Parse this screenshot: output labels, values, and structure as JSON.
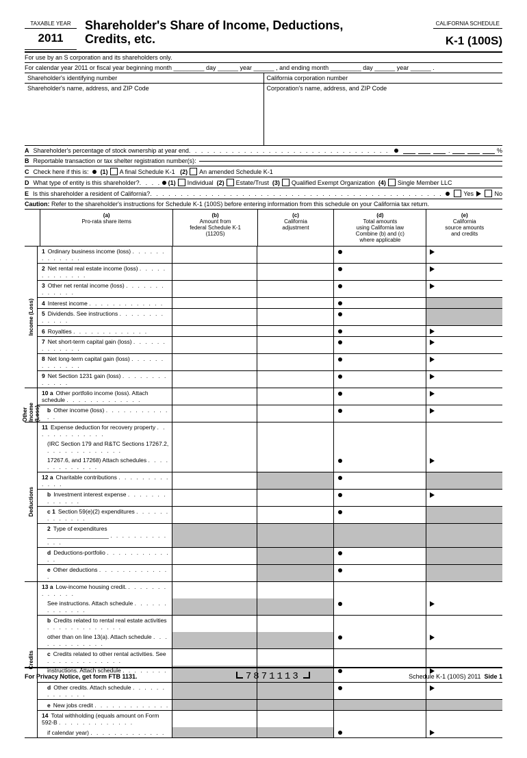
{
  "header": {
    "taxable_year_label": "TAXABLE YEAR",
    "year": "2011",
    "title_l1": "Shareholder's Share of Income, Deductions,",
    "title_l2": "Credits, etc.",
    "ca_schedule": "CALIFORNIA SCHEDULE",
    "form_code": "K-1 (100S)"
  },
  "info": {
    "use_line": "For use by an S corporation and its shareholders only.",
    "cal_line": "For calendar year 2011 or fiscal year beginning month _________ day ______ year ______ , and ending month _________ day ______ year ______ .",
    "sh_id": "Shareholder's identifying number",
    "ca_corp": "California corporation number",
    "sh_name": "Shareholder's name, address, and ZIP Code",
    "corp_name": "Corporation's name, address, and ZIP Code"
  },
  "items": {
    "A": "Shareholder's percentage of stock ownership at year end",
    "B": "Reportable transaction or tax shelter registration number(s):",
    "C": "Check here if this is:",
    "C1": "A final Schedule K-1",
    "C2": "An amended Schedule K-1",
    "D": "What type of entity is this shareholder?",
    "D1": "Individual",
    "D2": "Estate/Trust",
    "D3": "Qualified Exempt Organization",
    "D4": "Single Member LLC",
    "E": "Is this shareholder a resident of California?",
    "Yes": "Yes",
    "No": "No"
  },
  "caution": "Caution: Refer to the shareholder's instructions for Schedule K-1 (100S) before entering information from this schedule on your California tax return.",
  "columns": {
    "a": "(a)\nPro-rata share items",
    "b": "(b)\nAmount from\nfederal Schedule K-1\n(1120S)",
    "c": "(c)\nCalifornia\nadjustment",
    "d": "(d)\nTotal amounts\nusing California law\nCombine (b) and (c)\nwhere applicable",
    "e": "(e)\nCalifornia\nsource amounts\nand credits"
  },
  "sections": {
    "income": {
      "label": "Income (Loss)",
      "rows": [
        {
          "n": "1",
          "t": "Ordinary business income (loss)",
          "d": true,
          "e": true
        },
        {
          "n": "2",
          "t": "Net rental real estate income (loss)",
          "d": true,
          "e": true
        },
        {
          "n": "3",
          "t": "Other net rental income (loss)",
          "d": true,
          "e": true
        },
        {
          "n": "4",
          "t": "Interest income",
          "d": true,
          "e": true,
          "eshade": true
        },
        {
          "n": "5",
          "t": "Dividends. See instructions",
          "d": true,
          "e": true,
          "eshade": true
        },
        {
          "n": "6",
          "t": "Royalties",
          "d": true,
          "e": true
        },
        {
          "n": "7",
          "t": "Net short-term capital gain (loss)",
          "d": true,
          "e": true
        },
        {
          "n": "8",
          "t": "Net long-term capital gain (loss)",
          "d": true,
          "e": true
        },
        {
          "n": "9",
          "t": "Net Section 1231 gain (loss)",
          "d": true,
          "e": true
        }
      ]
    },
    "other": {
      "label": "Other\nIncome\n(Loss)",
      "rows": [
        {
          "n": "10 a",
          "t": "Other portfolio income (loss). Attach schedule",
          "d": true,
          "e": true
        },
        {
          "n": "b",
          "t": "Other income (loss)",
          "sub": true,
          "d": true,
          "e": true
        }
      ]
    },
    "deduct": {
      "label": "Deductions",
      "rows": [
        {
          "n": "11",
          "t": "Expense deduction for recovery property",
          "noline": true
        },
        {
          "n": "",
          "t": "(IRC Section 179 and R&TC Sections 17267.2,",
          "noline": true,
          "sub": true
        },
        {
          "n": "",
          "t": "17267.6, and 17268) Attach schedules",
          "sub": true,
          "d": true,
          "e": true
        },
        {
          "n": "12 a",
          "t": "Charitable contributions",
          "d": true,
          "eshade": true,
          "cshade": true
        },
        {
          "n": "b",
          "t": "Investment interest expense",
          "sub": true,
          "d": true,
          "e": true
        },
        {
          "n": "c 1",
          "t": "Section 59(e)(2) expenditures",
          "sub": true,
          "d": true,
          "eshade": true
        },
        {
          "n": "2",
          "t": "Type of expenditures ___________________",
          "sub": true,
          "bshade": true,
          "cshade": true,
          "dshade": true,
          "eshade": true
        },
        {
          "n": "d",
          "t": "Deductions-portfolio",
          "sub": true,
          "d": true,
          "eshade": true,
          "cshade": true
        },
        {
          "n": "e",
          "t": "Other deductions",
          "sub": true,
          "d": true,
          "eshade": true,
          "cshade": true
        }
      ]
    },
    "credits": {
      "label": "Credits",
      "rows": [
        {
          "n": "13 a",
          "t": "Low-income housing credit.",
          "noline": true
        },
        {
          "n": "",
          "t": "See instructions. Attach schedule",
          "sub": true,
          "d": true,
          "e": true,
          "bshade": true,
          "cshade": true
        },
        {
          "n": "b",
          "t": "Credits related to rental real estate activities",
          "sub": true,
          "noline": true
        },
        {
          "n": "",
          "t": "other than on line 13(a). Attach schedule",
          "sub": true,
          "d": true,
          "e": true,
          "bshade": true,
          "cshade": true
        },
        {
          "n": "c",
          "t": "Credits related to other rental activities. See",
          "sub": true,
          "noline": true
        },
        {
          "n": "",
          "t": "instructions. Attach schedule",
          "sub": true,
          "d": true,
          "e": true,
          "bshade": true,
          "cshade": true
        },
        {
          "n": "d",
          "t": "Other credits. Attach schedule",
          "sub": true,
          "d": true,
          "e": true,
          "bshade": true,
          "cshade": true
        },
        {
          "n": "e",
          "t": "New jobs credit",
          "sub": true,
          "bshade": true,
          "cshade": true,
          "dshade": true,
          "eshade": true
        },
        {
          "n": "14",
          "t": "Total withholding (equals amount on Form 592-B",
          "noline": true
        },
        {
          "n": "",
          "t": "if calendar year)",
          "sub": true,
          "d": true,
          "e": true,
          "bshade": true,
          "cshade": true
        }
      ]
    }
  },
  "footer": {
    "privacy": "For Privacy Notice, get form FTB 1131.",
    "barcode": "7871113",
    "page": "Schedule K-1 (100S)  2011",
    "side": "Side 1"
  }
}
